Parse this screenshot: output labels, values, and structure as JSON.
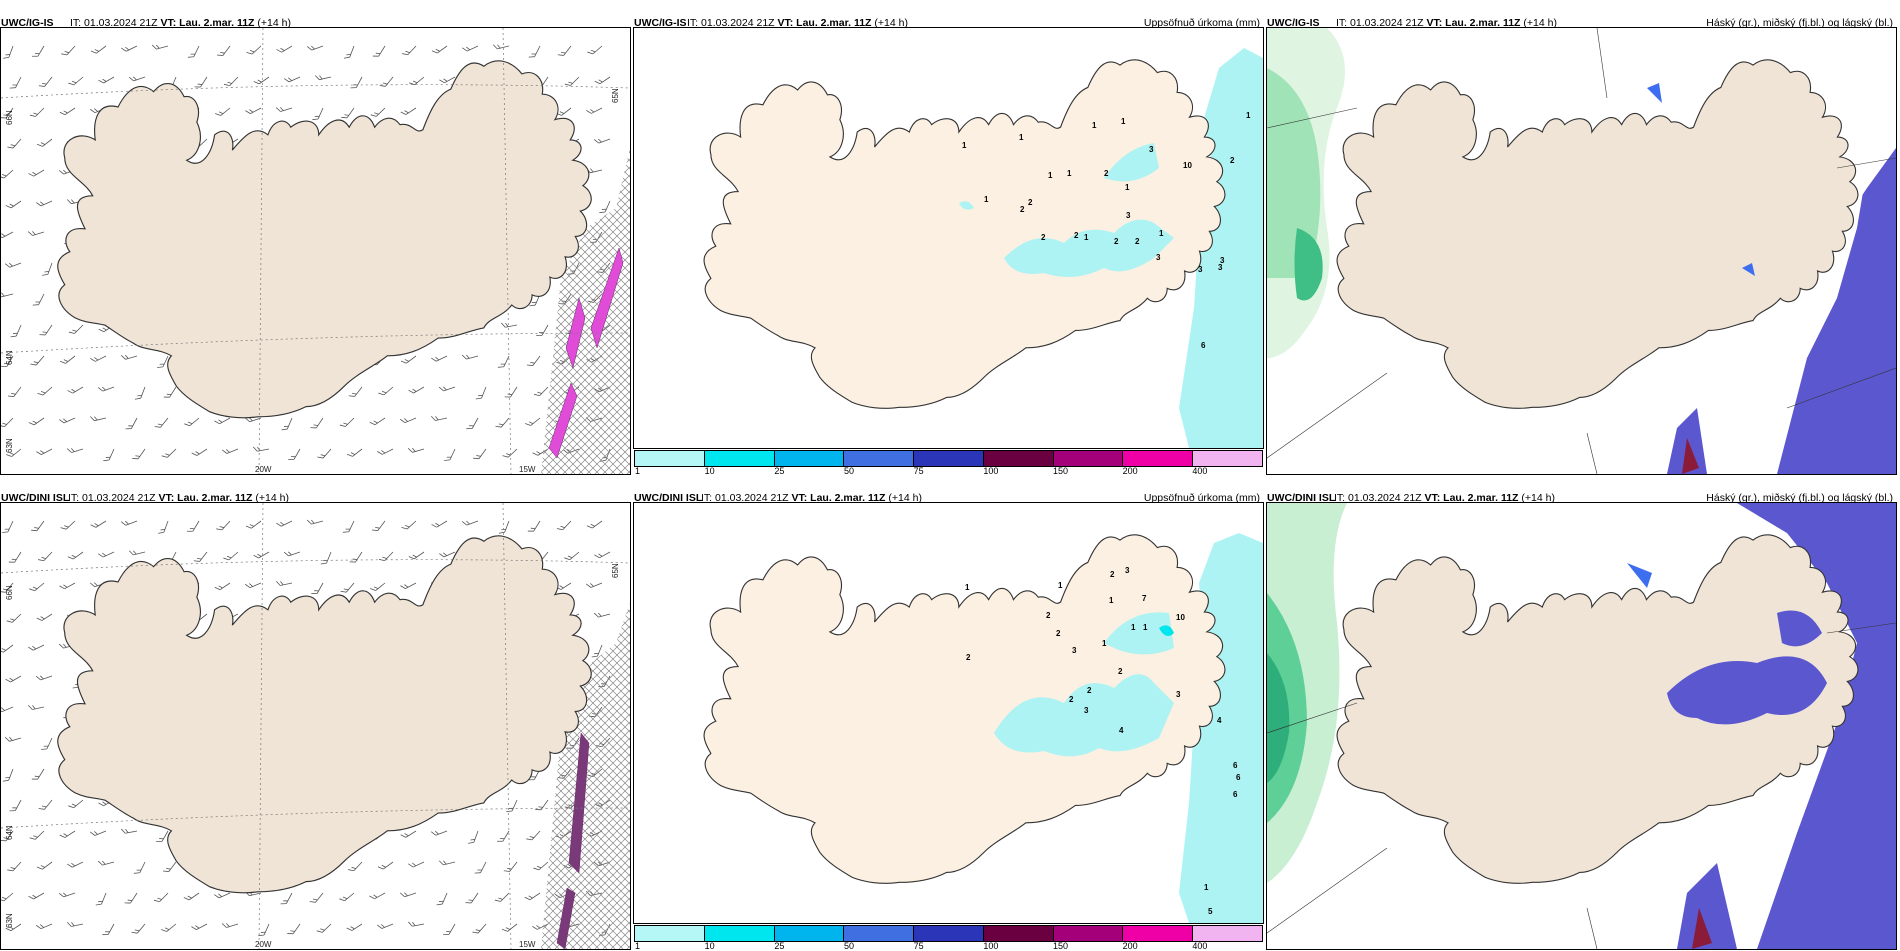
{
  "panels": [
    {
      "id": "wind-top",
      "model": "UWC/IG-IS",
      "it_label": "IT:",
      "it_value": "01.03.2024 21Z",
      "vt_label": "VT:",
      "vt_value": "Lau. 2.mar. 11Z",
      "lead": "(+14 h)",
      "field_title": "",
      "lat_labels": [
        "66N",
        "64N",
        "65N",
        "63N"
      ],
      "lon_labels": [
        "20W",
        "15W"
      ]
    },
    {
      "id": "precip-top",
      "model": "UWC/IG-IS",
      "it_label": "IT:",
      "it_value": "01.03.2024 21Z",
      "vt_label": "VT:",
      "vt_value": "Lau. 2.mar. 11Z",
      "lead": "(+14 h)",
      "field_title": "Uppsöfnuð úrkoma (mm)",
      "values": [
        "1",
        "1",
        "1",
        "1",
        "1",
        "3",
        "10",
        "2",
        "1",
        "1",
        "2",
        "1",
        "3",
        "2",
        "1",
        "2",
        "2",
        "2",
        "1",
        "2",
        "2",
        "1",
        "3",
        "3",
        "3",
        "3",
        "6"
      ]
    },
    {
      "id": "cloud-top",
      "model": "UWC/IG-IS",
      "it_label": "IT:",
      "it_value": "01.03.2024 21Z",
      "vt_label": "VT:",
      "vt_value": "Lau. 2.mar. 11Z",
      "lead": "(+14 h)",
      "field_title": "Háský (gr.), miðský (fj.bl.) og lágský (bl.)"
    },
    {
      "id": "wind-bottom",
      "model": "UWC/DINI ISL",
      "it_label": "IT:",
      "it_value": "01.03.2024 21Z",
      "vt_label": "VT:",
      "vt_value": "Lau. 2.mar. 11Z",
      "lead": "(+14 h)",
      "field_title": "",
      "lat_labels": [
        "66N",
        "64N",
        "65N",
        "63N"
      ],
      "lon_labels": [
        "20W",
        "15W"
      ]
    },
    {
      "id": "precip-bottom",
      "model": "UWC/DINI ISL",
      "it_label": "IT:",
      "it_value": "01.03.2024 21Z",
      "vt_label": "VT:",
      "vt_value": "Lau. 2.mar. 11Z",
      "lead": "(+14 h)",
      "field_title": "Uppsöfnuð úrkoma (mm)",
      "values": [
        "2",
        "3",
        "1",
        "1",
        "7",
        "10",
        "1",
        "2",
        "1",
        "1",
        "2",
        "3",
        "1",
        "2",
        "2",
        "2",
        "2",
        "3",
        "3",
        "4",
        "4",
        "6",
        "6",
        "6",
        "1",
        "5"
      ]
    },
    {
      "id": "cloud-bottom",
      "model": "UWC/DINI ISL",
      "it_label": "IT:",
      "it_value": "01.03.2024 21Z",
      "vt_label": "VT:",
      "vt_value": "Lau. 2.mar. 11Z",
      "lead": "(+14 h)",
      "field_title": "Háský (gr.), miðský (fj.bl.) og lágský (bl.)"
    }
  ],
  "legend": {
    "labels": [
      "1",
      "10",
      "25",
      "50",
      "75",
      "100",
      "150",
      "200",
      "400"
    ],
    "colors": [
      "#b5f6f7",
      "#00e6ef",
      "#00b4ee",
      "#3f6fe0",
      "#2a35b8",
      "#6a0040",
      "#a4007a",
      "#ee00a6",
      "#f2b4f0"
    ]
  },
  "colors": {
    "land_wind": "#efe4d6",
    "land_precip": "#fbf0e2",
    "land_cloud": "#efe4d6",
    "precip_light": "#aef3f3",
    "mid_cloud": "#5b57cf",
    "low_cloud_blue": "#3e6ef0",
    "high_cloud_green": "#58c98a",
    "severe_pink": "#e04bd8",
    "severe_purple": "#6c2c6c"
  }
}
